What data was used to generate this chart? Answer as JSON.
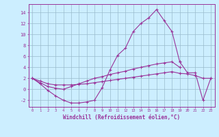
{
  "xlabel": "Windchill (Refroidissement éolien,°C)",
  "background_color": "#cceeff",
  "line_color": "#993399",
  "grid_color": "#99bbcc",
  "x_ticks": [
    0,
    1,
    2,
    3,
    4,
    5,
    6,
    7,
    8,
    9,
    10,
    11,
    12,
    13,
    14,
    15,
    16,
    17,
    18,
    19,
    20,
    21,
    22,
    23
  ],
  "y_ticks": [
    -2,
    0,
    2,
    4,
    6,
    8,
    10,
    12,
    14
  ],
  "ylim": [
    -3.2,
    15.5
  ],
  "xlim": [
    -0.5,
    23.5
  ],
  "series": [
    {
      "x": [
        0,
        1,
        2,
        3,
        4,
        5,
        6,
        7,
        8,
        9,
        10,
        11,
        12,
        13,
        14,
        15,
        16,
        17,
        18,
        19,
        20,
        21,
        22,
        23
      ],
      "y": [
        2.0,
        1.0,
        -0.2,
        -1.2,
        -2.0,
        -2.5,
        -2.5,
        -2.3,
        -2.0,
        0.3,
        3.5,
        6.2,
        7.5,
        10.5,
        12.0,
        13.0,
        14.5,
        12.5,
        10.5,
        5.0,
        null,
        null,
        null,
        null
      ]
    },
    {
      "x": [
        0,
        1,
        2,
        3,
        4,
        5,
        6,
        7,
        8,
        9,
        10,
        11,
        12,
        13,
        14,
        15,
        16,
        17,
        18,
        19,
        20,
        21,
        22,
        23
      ],
      "y": [
        2.0,
        1.2,
        0.5,
        0.2,
        0.0,
        0.5,
        1.0,
        1.5,
        2.0,
        2.3,
        2.7,
        3.0,
        3.3,
        3.7,
        4.0,
        4.3,
        4.6,
        4.8,
        5.0,
        4.0,
        null,
        null,
        null,
        null
      ]
    },
    {
      "x": [
        0,
        1,
        2,
        3,
        4,
        5,
        6,
        7,
        8,
        9,
        10,
        11,
        12,
        13,
        14,
        15,
        16,
        17,
        18,
        19,
        20,
        21,
        22,
        23
      ],
      "y": [
        2.0,
        1.5,
        1.0,
        0.8,
        0.8,
        0.8,
        0.9,
        1.0,
        1.2,
        1.4,
        1.6,
        1.8,
        2.0,
        2.2,
        2.4,
        2.6,
        2.8,
        3.0,
        3.2,
        2.9,
        2.8,
        2.5,
        2.0,
        2.0
      ]
    },
    {
      "x": [
        19,
        20,
        21,
        22,
        23
      ],
      "y": [
        5.0,
        3.0,
        3.0,
        -2.0,
        2.0
      ]
    }
  ]
}
